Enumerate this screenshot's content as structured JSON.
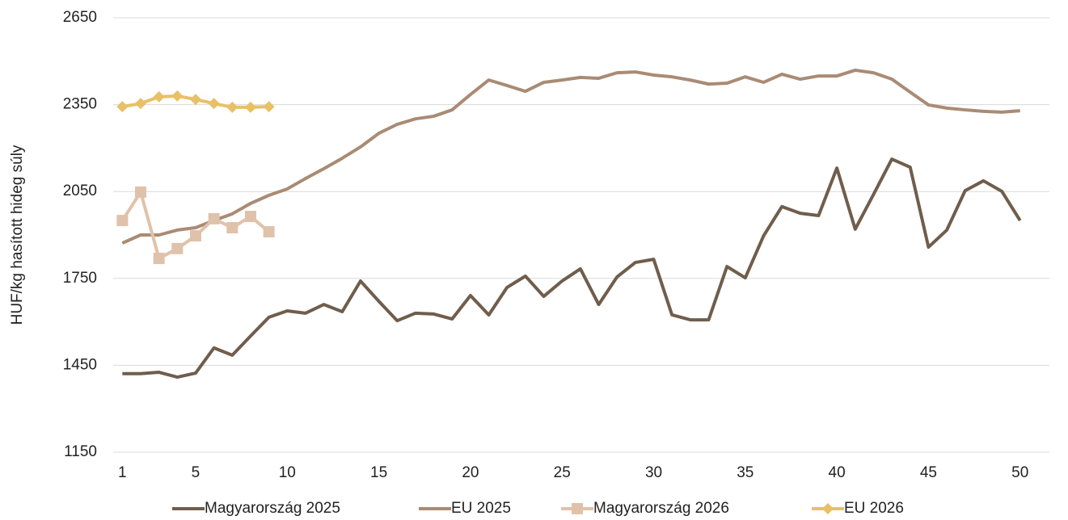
{
  "chart_data": {
    "type": "line",
    "y_label": "HUF/kg hasított hideg súly",
    "x": [
      1,
      2,
      3,
      4,
      5,
      6,
      7,
      8,
      9,
      10,
      11,
      12,
      13,
      14,
      15,
      16,
      17,
      18,
      19,
      20,
      21,
      22,
      23,
      24,
      25,
      26,
      27,
      28,
      29,
      30,
      31,
      32,
      33,
      34,
      35,
      36,
      37,
      38,
      39,
      40,
      41,
      42,
      43,
      44,
      45,
      46,
      47,
      48,
      49,
      50
    ],
    "xlim": [
      0.5,
      51.6
    ],
    "xticks": [
      1,
      5,
      10,
      15,
      20,
      25,
      30,
      35,
      40,
      45,
      50
    ],
    "ylim": [
      1150,
      2650
    ],
    "yticks": [
      1150,
      1450,
      1750,
      2050,
      2350,
      2650
    ],
    "grid": true,
    "legend": "bottom",
    "series": [
      {
        "name": "Magyarország 2025",
        "color": "#705d4c",
        "marker": "none",
        "values": [
          1421,
          1421,
          1426,
          1409,
          1423,
          1510,
          1485,
          1551,
          1616,
          1638,
          1630,
          1660,
          1635,
          1741,
          1671,
          1604,
          1630,
          1627,
          1610,
          1691,
          1624,
          1719,
          1758,
          1688,
          1741,
          1783,
          1660,
          1755,
          1805,
          1816,
          1624,
          1607,
          1607,
          1791,
          1752,
          1897,
          1998,
          1975,
          1967,
          2131,
          1920,
          2040,
          2162,
          2134,
          1858,
          1917,
          2053,
          2087,
          2051,
          1950
        ]
      },
      {
        "name": "EU 2025",
        "color": "#a98b74",
        "marker": "none",
        "values": [
          1872,
          1900,
          1900,
          1917,
          1925,
          1950,
          1973,
          2009,
          2037,
          2059,
          2095,
          2129,
          2165,
          2204,
          2251,
          2282,
          2301,
          2310,
          2332,
          2385,
          2435,
          2416,
          2396,
          2427,
          2435,
          2444,
          2441,
          2460,
          2463,
          2452,
          2446,
          2435,
          2421,
          2424,
          2446,
          2427,
          2455,
          2438,
          2449,
          2449,
          2469,
          2460,
          2438,
          2393,
          2349,
          2338,
          2332,
          2327,
          2324,
          2329
        ]
      },
      {
        "name": "Magyarország 2026",
        "color": "#e0c2aa",
        "marker": "square",
        "values": [
          1950,
          2048,
          1819,
          1853,
          1897,
          1956,
          1925,
          1964,
          1911,
          null,
          null,
          null,
          null,
          null,
          null,
          null,
          null,
          null,
          null,
          null,
          null,
          null,
          null,
          null,
          null,
          null,
          null,
          null,
          null,
          null,
          null,
          null,
          null,
          null,
          null,
          null,
          null,
          null,
          null,
          null,
          null,
          null,
          null,
          null,
          null,
          null,
          null,
          null,
          null,
          null
        ]
      },
      {
        "name": "EU 2026",
        "color": "#e8c067",
        "marker": "diamond",
        "values": [
          2343,
          2354,
          2377,
          2380,
          2368,
          2354,
          2341,
          2341,
          2343,
          null,
          null,
          null,
          null,
          null,
          null,
          null,
          null,
          null,
          null,
          null,
          null,
          null,
          null,
          null,
          null,
          null,
          null,
          null,
          null,
          null,
          null,
          null,
          null,
          null,
          null,
          null,
          null,
          null,
          null,
          null,
          null,
          null,
          null,
          null,
          null,
          null,
          null,
          null,
          null,
          null
        ]
      }
    ]
  }
}
